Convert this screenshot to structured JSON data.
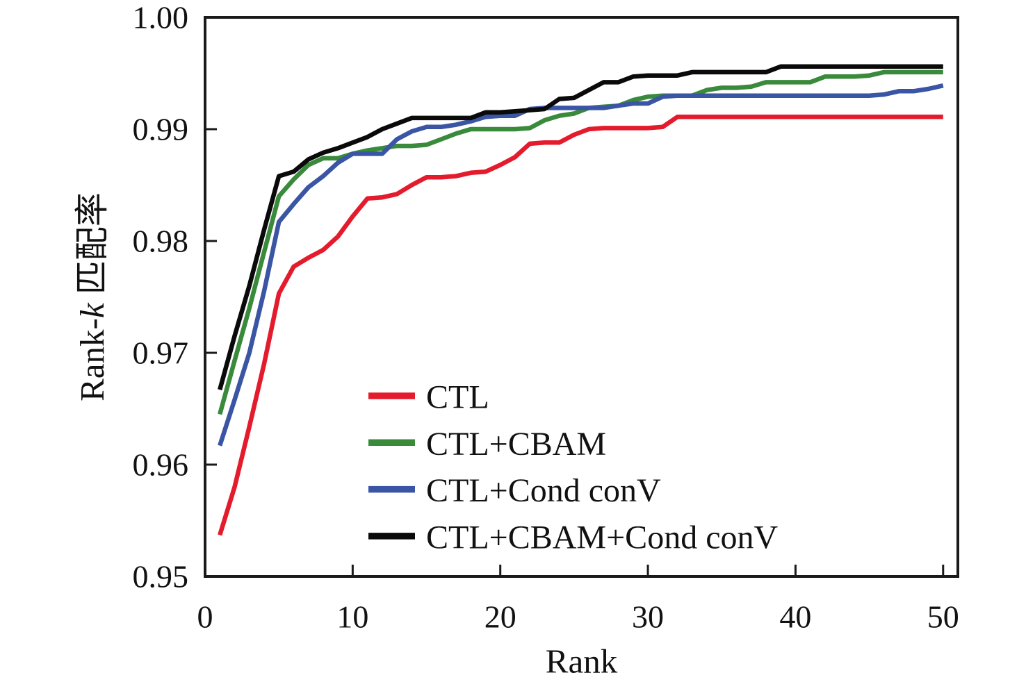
{
  "figure": {
    "background": "#ffffff",
    "text_color": "#111111",
    "axis_color": "#1a1a1a"
  },
  "chart_data": {
    "type": "line",
    "title": "",
    "xlabel": "Rank",
    "ylabel": "Rank-k 匹配率",
    "ylabel_parts": {
      "prefix": "Rank-",
      "italic": "k",
      "suffix": " 匹配率"
    },
    "xlim": [
      0,
      51
    ],
    "ylim": [
      0.95,
      1.0
    ],
    "grid": false,
    "legend_position": "inside lower-center-right, no frame",
    "x_ticks": [
      0,
      10,
      20,
      30,
      40,
      50
    ],
    "x_tick_labels": [
      "0",
      "10",
      "20",
      "30",
      "40",
      "50"
    ],
    "y_ticks": [
      0.95,
      0.96,
      0.97,
      0.98,
      0.99,
      1.0
    ],
    "y_tick_labels": [
      "0.95",
      "0.96",
      "0.97",
      "0.98",
      "0.99",
      "1.00"
    ],
    "x": [
      1,
      2,
      3,
      4,
      5,
      6,
      7,
      8,
      9,
      10,
      11,
      12,
      13,
      14,
      15,
      16,
      17,
      18,
      19,
      20,
      21,
      22,
      23,
      24,
      25,
      26,
      27,
      28,
      29,
      30,
      31,
      32,
      33,
      34,
      35,
      36,
      37,
      38,
      39,
      40,
      41,
      42,
      43,
      44,
      45,
      46,
      47,
      48,
      49,
      50
    ],
    "series": [
      {
        "name": "CTL",
        "color": "#e41b2c",
        "values": [
          0.9537,
          0.958,
          0.9634,
          0.969,
          0.9753,
          0.9777,
          0.9785,
          0.9792,
          0.9804,
          0.9822,
          0.9838,
          0.9839,
          0.9842,
          0.985,
          0.9857,
          0.9857,
          0.9858,
          0.9861,
          0.9862,
          0.9868,
          0.9875,
          0.9887,
          0.9888,
          0.9888,
          0.9895,
          0.99,
          0.9901,
          0.9901,
          0.9901,
          0.9901,
          0.9902,
          0.9911,
          0.9911,
          0.9911,
          0.9911,
          0.9911,
          0.9911,
          0.9911,
          0.9911,
          0.9911,
          0.9911,
          0.9911,
          0.9911,
          0.9911,
          0.9911,
          0.9911,
          0.9911,
          0.9911,
          0.9911,
          0.9911
        ]
      },
      {
        "name": "CTL+CBAM",
        "color": "#3a8a3c",
        "values": [
          0.9645,
          0.9693,
          0.974,
          0.979,
          0.984,
          0.9855,
          0.9868,
          0.9874,
          0.9874,
          0.9878,
          0.9881,
          0.9883,
          0.9885,
          0.9885,
          0.9886,
          0.9891,
          0.9896,
          0.99,
          0.99,
          0.99,
          0.99,
          0.9901,
          0.9908,
          0.9912,
          0.9914,
          0.9919,
          0.992,
          0.9921,
          0.9926,
          0.9929,
          0.993,
          0.993,
          0.993,
          0.9935,
          0.9937,
          0.9937,
          0.9938,
          0.9942,
          0.9942,
          0.9942,
          0.9942,
          0.9947,
          0.9947,
          0.9947,
          0.9948,
          0.9951,
          0.9951,
          0.9951,
          0.9951,
          0.9951
        ]
      },
      {
        "name": "CTL+Cond conV",
        "color": "#3b55a5",
        "values": [
          0.9617,
          0.9658,
          0.97,
          0.9755,
          0.9817,
          0.9833,
          0.9848,
          0.9858,
          0.987,
          0.9878,
          0.9878,
          0.9878,
          0.9891,
          0.9898,
          0.9902,
          0.9902,
          0.9904,
          0.9907,
          0.9911,
          0.9912,
          0.9912,
          0.9918,
          0.9919,
          0.9919,
          0.9919,
          0.9919,
          0.9919,
          0.9921,
          0.9923,
          0.9923,
          0.9929,
          0.993,
          0.993,
          0.993,
          0.993,
          0.993,
          0.993,
          0.993,
          0.993,
          0.993,
          0.993,
          0.993,
          0.993,
          0.993,
          0.993,
          0.9931,
          0.9934,
          0.9934,
          0.9936,
          0.9939
        ]
      },
      {
        "name": "CTL+CBAM+Cond conV",
        "color": "#0a0a0a",
        "values": [
          0.9667,
          0.9715,
          0.976,
          0.981,
          0.9858,
          0.9862,
          0.9873,
          0.9879,
          0.9883,
          0.9888,
          0.9893,
          0.99,
          0.9905,
          0.991,
          0.991,
          0.991,
          0.991,
          0.991,
          0.9915,
          0.9915,
          0.9916,
          0.9917,
          0.9918,
          0.9927,
          0.9928,
          0.9935,
          0.9942,
          0.9942,
          0.9947,
          0.9948,
          0.9948,
          0.9948,
          0.9951,
          0.9951,
          0.9951,
          0.9951,
          0.9951,
          0.9951,
          0.9956,
          0.9956,
          0.9956,
          0.9956,
          0.9956,
          0.9956,
          0.9956,
          0.9956,
          0.9956,
          0.9956,
          0.9956,
          0.9956
        ]
      }
    ]
  }
}
